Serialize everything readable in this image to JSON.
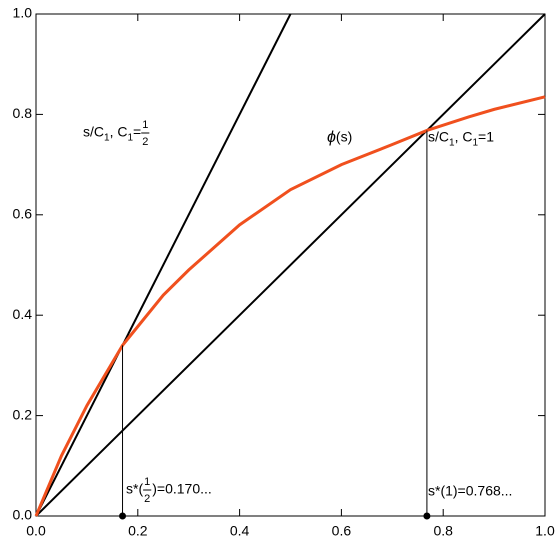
{
  "chart_data": {
    "type": "line",
    "xlim": [
      0,
      1
    ],
    "ylim": [
      0,
      1
    ],
    "xticks": [
      {
        "value": 0,
        "label": "0.0"
      },
      {
        "value": 0.2,
        "label": "0.2"
      },
      {
        "value": 0.4,
        "label": "0.4"
      },
      {
        "value": 0.6,
        "label": "0.6"
      },
      {
        "value": 0.8,
        "label": "0.8"
      },
      {
        "value": 1,
        "label": "1.0"
      }
    ],
    "yticks": [
      {
        "value": 0,
        "label": "0.0"
      },
      {
        "value": 0.2,
        "label": "0.2"
      },
      {
        "value": 0.4,
        "label": "0.4"
      },
      {
        "value": 0.6,
        "label": "0.6"
      },
      {
        "value": 0.8,
        "label": "0.8"
      },
      {
        "value": 1,
        "label": "1.0"
      }
    ],
    "series": [
      {
        "color": "#000000",
        "x": [
          0,
          0.5
        ],
        "values": [
          0,
          1
        ]
      },
      {
        "color": "#000000",
        "x": [
          0,
          1
        ],
        "values": [
          0,
          1
        ]
      },
      {
        "color": "#f0501e",
        "x": [
          0,
          0.05,
          0.1,
          0.17,
          0.25,
          0.3,
          0.4,
          0.5,
          0.6,
          0.7,
          0.768,
          0.85,
          0.9,
          1
        ],
        "values": [
          0,
          0.12,
          0.22,
          0.34,
          0.44,
          0.49,
          0.58,
          0.65,
          0.7,
          0.74,
          0.768,
          0.795,
          0.81,
          0.835
        ]
      }
    ],
    "drop_lines": [
      {
        "x": 0.17,
        "y": 0.34
      },
      {
        "x": 0.768,
        "y": 0.768
      }
    ],
    "annotations": [
      {
        "color": "#000000",
        "parts": [
          {
            "text": "s/C"
          },
          {
            "sub": "1"
          },
          {
            "text": ", C"
          },
          {
            "sub": "1"
          },
          {
            "text": "="
          },
          {
            "num": "1",
            "den": "2"
          }
        ]
      },
      {
        "color": "#f0501e",
        "parts": [
          {
            "italic": "ϕ"
          },
          {
            "text": "(s)"
          }
        ]
      },
      {
        "color": "#000000",
        "parts": [
          {
            "text": "s/C"
          },
          {
            "sub": "1"
          },
          {
            "text": ", C"
          },
          {
            "sub": "1"
          },
          {
            "text": "=1"
          }
        ]
      },
      {
        "color": "#000000",
        "parts": [
          {
            "text": "s*("
          },
          {
            "num": "1",
            "den": "2"
          },
          {
            "text": ")=0.170..."
          }
        ]
      },
      {
        "color": "#000000",
        "parts": [
          {
            "text": "s*(1)=0.768..."
          }
        ]
      }
    ]
  }
}
